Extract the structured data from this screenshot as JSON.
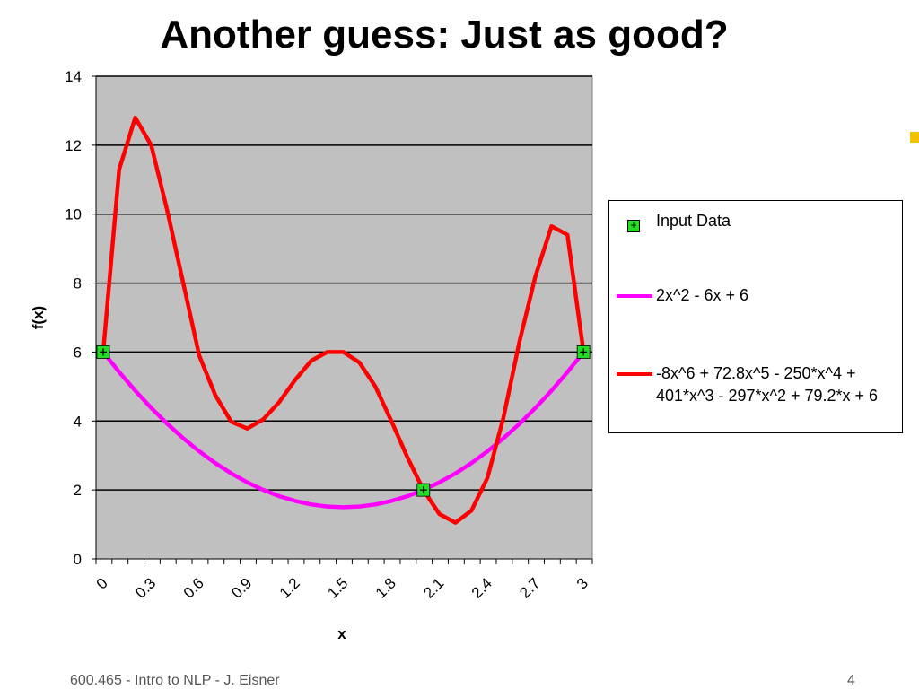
{
  "slide": {
    "title": "Another guess: Just as good?",
    "footer_left": "600.465 - Intro to NLP - J. Eisner",
    "footer_right": "4"
  },
  "chart_data": {
    "type": "line",
    "title": "",
    "xlabel": "x",
    "ylabel": "f(x)",
    "xlim": [
      0,
      3.1
    ],
    "ylim": [
      0,
      14
    ],
    "yticks": [
      0,
      2,
      4,
      6,
      8,
      10,
      12,
      14
    ],
    "xtick_labels": [
      "0",
      "0.3",
      "0.6",
      "0.9",
      "1.2",
      "1.5",
      "1.8",
      "2.1",
      "2.4",
      "2.7",
      "3"
    ],
    "grid": "horizontal",
    "plot_background": "#c0c0c0",
    "legend_position": "right",
    "series": [
      {
        "name": "Input Data",
        "kind": "marker",
        "color": "#22dd22",
        "x": [
          0,
          2,
          3
        ],
        "y": [
          6,
          2,
          6
        ]
      },
      {
        "name": "2x^2 - 6x + 6",
        "kind": "line",
        "color": "#ff00ff",
        "x": [
          0,
          0.1,
          0.2,
          0.3,
          0.4,
          0.5,
          0.6,
          0.7,
          0.8,
          0.9,
          1.0,
          1.1,
          1.2,
          1.3,
          1.4,
          1.5,
          1.6,
          1.7,
          1.8,
          1.9,
          2.0,
          2.1,
          2.2,
          2.3,
          2.4,
          2.5,
          2.6,
          2.7,
          2.8,
          2.9,
          3.0
        ],
        "y": [
          6,
          5.42,
          4.88,
          4.38,
          3.92,
          3.5,
          3.12,
          2.78,
          2.48,
          2.22,
          2.0,
          1.82,
          1.68,
          1.58,
          1.52,
          1.5,
          1.52,
          1.58,
          1.68,
          1.82,
          2.0,
          2.22,
          2.48,
          2.78,
          3.12,
          3.5,
          3.92,
          4.38,
          4.88,
          5.42,
          6.0
        ]
      },
      {
        "name": "-8x^6 + 72.8x^5 - 250*x^4 + 401*x^3 - 297*x^2 + 79.2*x + 6",
        "kind": "line",
        "color": "#ff0000",
        "x": [
          0,
          0.1,
          0.2,
          0.3,
          0.4,
          0.5,
          0.6,
          0.7,
          0.8,
          0.9,
          1.0,
          1.1,
          1.2,
          1.3,
          1.4,
          1.5,
          1.6,
          1.7,
          1.8,
          1.9,
          2.0,
          2.1,
          2.2,
          2.3,
          2.4,
          2.5,
          2.6,
          2.7,
          2.8,
          2.9,
          3.0
        ],
        "y": [
          6,
          11.3,
          12.8,
          12.0,
          10.1,
          8.0,
          5.9,
          4.75,
          3.98,
          3.78,
          4.05,
          4.55,
          5.2,
          5.75,
          6.0,
          6.0,
          5.7,
          5.0,
          4.0,
          2.95,
          2.0,
          1.3,
          1.05,
          1.4,
          2.35,
          4.1,
          6.3,
          8.2,
          9.65,
          9.4,
          6.0
        ]
      }
    ]
  }
}
